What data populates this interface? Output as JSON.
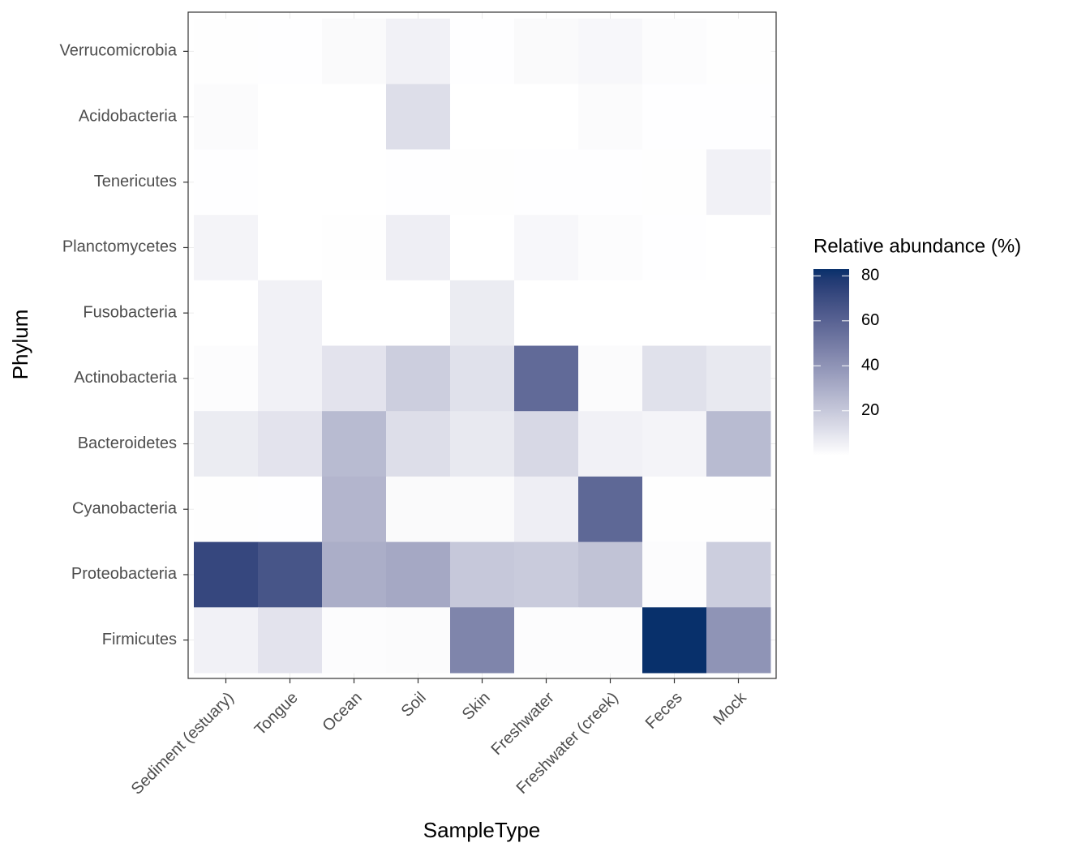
{
  "chart_data": {
    "type": "heatmap",
    "x_label": "SampleType",
    "y_label": "Phylum",
    "x_categories": [
      "Sediment (estuary)",
      "Tongue",
      "Ocean",
      "Soil",
      "Skin",
      "Freshwater",
      "Freshwater (creek)",
      "Feces",
      "Mock"
    ],
    "y_categories": [
      "Verrucomicrobia",
      "Acidobacteria",
      "Tenericutes",
      "Planctomycetes",
      "Fusobacteria",
      "Actinobacteria",
      "Bacteroidetes",
      "Cyanobacteria",
      "Proteobacteria",
      "Firmicutes"
    ],
    "values": [
      [
        0.5,
        0.3,
        2,
        5,
        0.3,
        2,
        3,
        1,
        0.5
      ],
      [
        1.5,
        0.2,
        0.2,
        12,
        0.2,
        0.2,
        1.5,
        0.3,
        0.3
      ],
      [
        0.3,
        0.2,
        0.2,
        0.3,
        0.5,
        0.3,
        0.3,
        0.5,
        5
      ],
      [
        4,
        0.2,
        0.5,
        6,
        0.2,
        3,
        1,
        0.3,
        0.2
      ],
      [
        0.2,
        5,
        0.1,
        0.1,
        7,
        0.1,
        0.1,
        0.1,
        0.1
      ],
      [
        1,
        5,
        10,
        18,
        11,
        57,
        1.5,
        11,
        8
      ],
      [
        7,
        10,
        25,
        12,
        8,
        14,
        5,
        4,
        25
      ],
      [
        0.5,
        0.3,
        27,
        2,
        2,
        6,
        58,
        0.5,
        0.5
      ],
      [
        72,
        66,
        30,
        32,
        20,
        19,
        22,
        1,
        18
      ],
      [
        5,
        10,
        1,
        1.5,
        46,
        1,
        1,
        83,
        40
      ]
    ],
    "legend_title": "Relative abundance (%)",
    "colorlim": [
      0.1,
      83
    ],
    "colorticks": [
      20,
      40,
      60,
      80
    ],
    "low_color": "#ffffff",
    "high_color": "#08306b"
  }
}
